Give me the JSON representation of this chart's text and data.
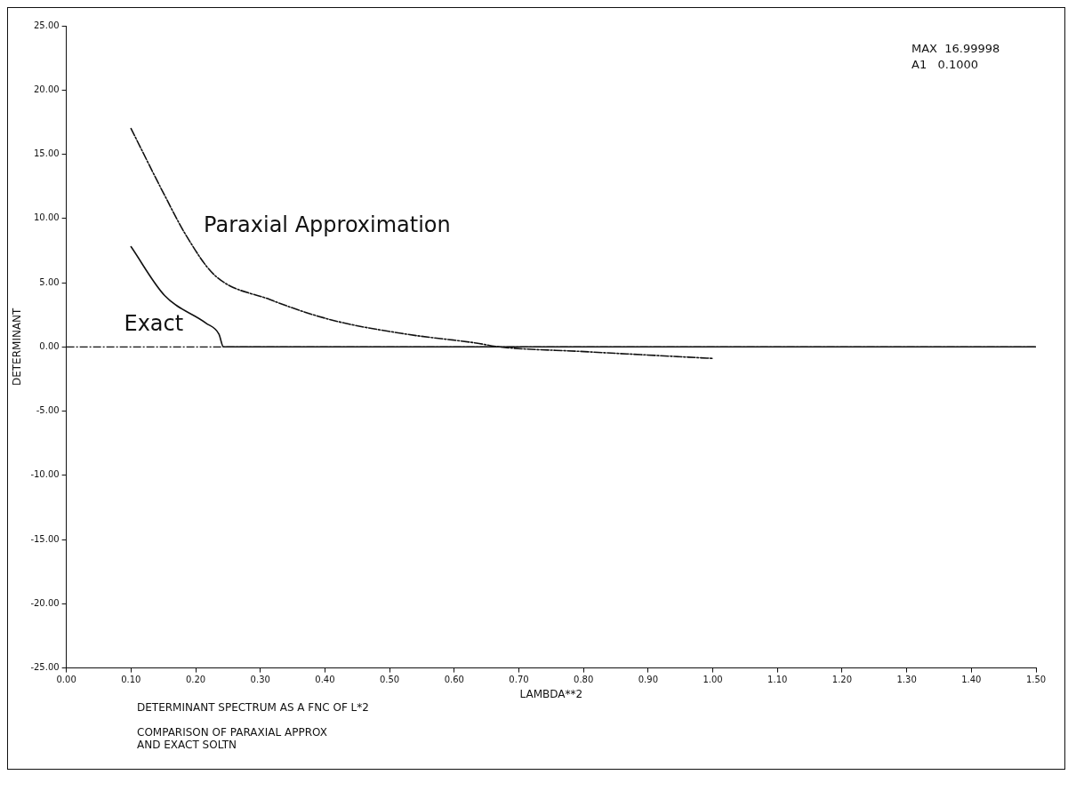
{
  "chart_data": {
    "type": "line",
    "title": "DETERMINANT SPECTRUM AS A FNC OF L*2",
    "subtitle": "COMPARISON OF PARAXIAL APPROX\nAND EXACT SOLTN",
    "xlabel": "LAMBDA**2",
    "ylabel": "DETERMINANT",
    "annotations": [
      "MAX  16.99998",
      "A1   0.1000"
    ],
    "series": [
      {
        "name": "Paraxial Approximation",
        "color": "#111111",
        "line_style": "dashed",
        "x": [
          0.1,
          0.152,
          0.185,
          0.229,
          0.314,
          0.41,
          0.525,
          0.634,
          0.67,
          0.794,
          1.0
        ],
        "values": [
          17,
          11.8,
          8.7,
          5.6,
          3.7,
          2.1,
          1.0,
          0.3,
          0,
          -0.35,
          -0.9
        ]
      },
      {
        "name": "Exact",
        "color": "#111111",
        "line_style": "solid",
        "x": [
          0.1,
          0.152,
          0.216,
          0.236,
          0.243,
          0.5,
          1.0,
          1.5
        ],
        "values": [
          7.8,
          4.0,
          1.85,
          1.0,
          0,
          0,
          0,
          0
        ]
      }
    ],
    "ref_lines": [
      {
        "axis": "y",
        "value": 0,
        "line_style": "dashed",
        "color": "#111111"
      }
    ],
    "xlim": [
      0,
      1.5
    ],
    "ylim": [
      -25,
      25
    ],
    "xticks": [
      {
        "value": 0,
        "label": "0.00"
      },
      {
        "value": 0.1,
        "label": "0.10"
      },
      {
        "value": 0.2,
        "label": "0.20"
      },
      {
        "value": 0.3,
        "label": "0.30"
      },
      {
        "value": 0.4,
        "label": "0.40"
      },
      {
        "value": 0.5,
        "label": "0.50"
      },
      {
        "value": 0.6,
        "label": "0.60"
      },
      {
        "value": 0.7,
        "label": "0.70"
      },
      {
        "value": 0.8,
        "label": "0.80"
      },
      {
        "value": 0.9,
        "label": "0.90"
      },
      {
        "value": 1,
        "label": "1.00"
      },
      {
        "value": 1.1,
        "label": "1.10"
      },
      {
        "value": 1.2,
        "label": "1.20"
      },
      {
        "value": 1.3,
        "label": "1.30"
      },
      {
        "value": 1.4,
        "label": "1.40"
      },
      {
        "value": 1.5,
        "label": "1.50"
      }
    ],
    "yticks": [
      {
        "value": -25,
        "label": "-25.00"
      },
      {
        "value": -20,
        "label": "-20.00"
      },
      {
        "value": -15,
        "label": "-15.00"
      },
      {
        "value": -10,
        "label": "-10.00"
      },
      {
        "value": -5,
        "label": "-5.00"
      },
      {
        "value": 0,
        "label": "0.00"
      },
      {
        "value": 5,
        "label": "5.00"
      },
      {
        "value": 10,
        "label": "10.00"
      },
      {
        "value": 15,
        "label": "15.00"
      },
      {
        "value": 20,
        "label": "20.00"
      },
      {
        "value": 25,
        "label": "25.00"
      }
    ],
    "grid": false,
    "legend": false,
    "marker": "none"
  }
}
